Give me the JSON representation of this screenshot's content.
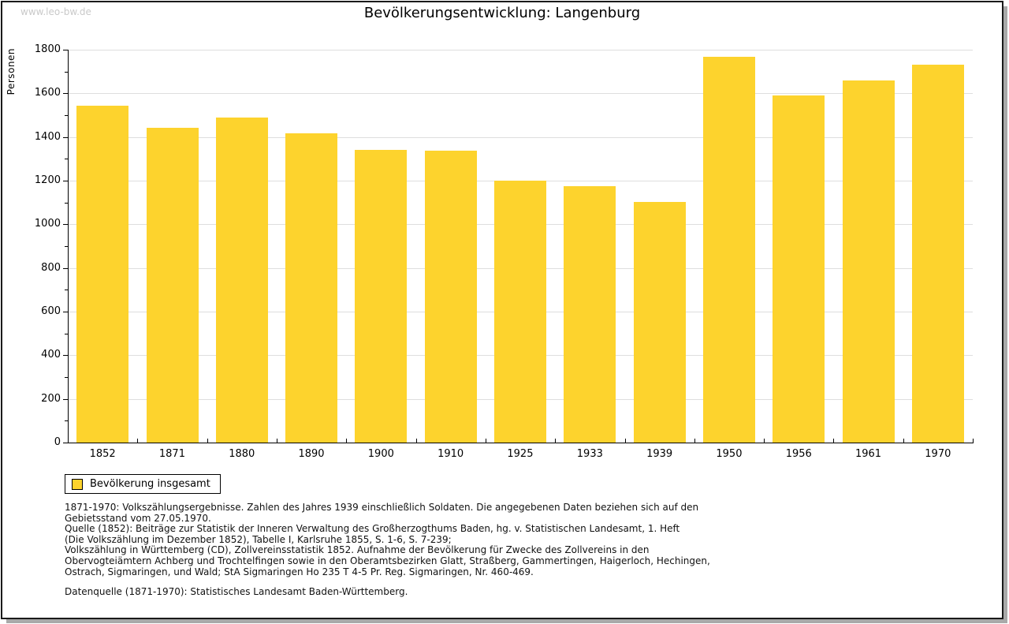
{
  "watermark": "www.leo-bw.de",
  "title": "Bevölkerungsentwicklung: Langenburg",
  "colors": {
    "bar": "#FDD32D",
    "grid": "#DEDEDE",
    "axis": "#000000",
    "watermark": "#C9C9C9",
    "frame_shadow": "#A9A9A9"
  },
  "legend": {
    "label": "Bevölkerung insgesamt"
  },
  "chart_data": {
    "type": "bar",
    "title": "Bevölkerungsentwicklung: Langenburg",
    "xlabel": "",
    "ylabel": "Personen",
    "categories": [
      "1852",
      "1871",
      "1880",
      "1890",
      "1900",
      "1910",
      "1925",
      "1933",
      "1939",
      "1950",
      "1956",
      "1961",
      "1970"
    ],
    "values": [
      1545,
      1441,
      1491,
      1416,
      1340,
      1336,
      1200,
      1176,
      1101,
      1768,
      1590,
      1660,
      1730
    ],
    "series_name": "Bevölkerung insgesamt",
    "ylim": [
      0,
      1800
    ],
    "ytick_step": 200,
    "yminor_step": 100,
    "grid": true,
    "legend_position": "bottom-left"
  },
  "footnotes": {
    "lines": [
      "1871-1970: Volkszählungsergebnisse. Zahlen des Jahres 1939 einschließlich Soldaten. Die angegebenen Daten beziehen sich auf den",
      "Gebietsstand vom 27.05.1970.",
      "Quelle (1852): Beiträge zur Statistik der Inneren Verwaltung des Großherzogthums Baden, hg. v. Statistischen Landesamt, 1. Heft",
      "(Die Volkszählung im Dezember 1852), Tabelle I, Karlsruhe 1855, S. 1-6, S. 7-239;",
      "Volkszählung in Württemberg (CD), Zollvereinsstatistik 1852. Aufnahme der Bevölkerung für Zwecke des Zollvereins in den",
      "Obervogteiämtern Achberg und Trochtelfingen sowie in den Oberamtsbezirken Glatt, Straßberg, Gammertingen, Haigerloch, Hechingen,",
      "Ostrach, Sigmaringen, und Wald; StA Sigmaringen Ho 235 T 4-5 Pr. Reg. Sigmaringen, Nr. 460-469."
    ],
    "source_line": "Datenquelle (1871-1970): Statistisches Landesamt Baden-Württemberg."
  }
}
